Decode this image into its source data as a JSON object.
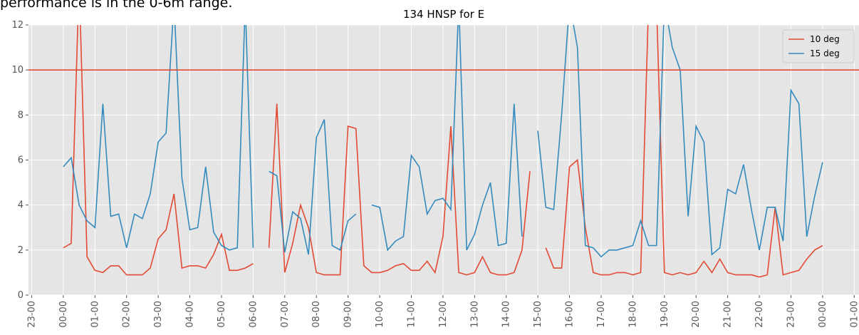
{
  "caption": "performance is in the 0-6m range.",
  "chart_data": {
    "type": "line",
    "title": "134 HNSP for E",
    "x": [
      0,
      0.25,
      0.5,
      0.75,
      1,
      1.25,
      1.5,
      1.75,
      2,
      2.25,
      2.5,
      2.75,
      3,
      3.25,
      3.5,
      3.75,
      4,
      4.25,
      4.5,
      4.75,
      5,
      5.25,
      5.5,
      5.75,
      6,
      6.25,
      6.5,
      6.75,
      7,
      7.25,
      7.5,
      7.75,
      8,
      8.25,
      8.5,
      8.75,
      9,
      9.25,
      9.5,
      9.75,
      10,
      10.25,
      10.5,
      10.75,
      11,
      11.25,
      11.5,
      11.75,
      12,
      12.25,
      12.5,
      12.75,
      13,
      13.25,
      13.5,
      13.75,
      14,
      14.25,
      14.5,
      14.75,
      15,
      15.25,
      15.5,
      15.75,
      16,
      16.25,
      16.5,
      16.75,
      17,
      17.25,
      17.5,
      17.75,
      18,
      18.25,
      18.5,
      18.75,
      19,
      19.25,
      19.5,
      19.75,
      20,
      20.25,
      20.5,
      20.75,
      21,
      21.25,
      21.5,
      21.75,
      22,
      22.25,
      22.5,
      22.75,
      23,
      23.25,
      23.5,
      23.75,
      24
    ],
    "series": [
      {
        "name": "10 deg",
        "color": "#E24A33",
        "values": [
          2.1,
          2.3,
          14,
          1.7,
          1.1,
          1.0,
          1.3,
          1.3,
          0.9,
          0.9,
          0.9,
          1.2,
          2.5,
          2.9,
          4.5,
          1.2,
          1.3,
          1.3,
          1.2,
          1.8,
          2.7,
          1.1,
          1.1,
          1.2,
          1.4,
          null,
          2.1,
          8.5,
          1.0,
          2.3,
          4.0,
          3.0,
          1.0,
          0.9,
          0.9,
          0.9,
          7.5,
          7.4,
          1.3,
          1.0,
          1.0,
          1.1,
          1.3,
          1.4,
          1.1,
          1.1,
          1.5,
          1.0,
          2.6,
          7.5,
          1.0,
          0.9,
          1.0,
          1.7,
          1.0,
          0.9,
          0.9,
          1.0,
          2.0,
          5.5,
          null,
          2.1,
          1.2,
          1.2,
          5.7,
          6.0,
          3.0,
          1.0,
          0.9,
          0.9,
          1.0,
          1.0,
          0.9,
          1.0,
          13,
          13,
          1.0,
          0.9,
          1.0,
          0.9,
          1.0,
          1.5,
          1.0,
          1.6,
          1.0,
          0.9,
          0.9,
          0.9,
          0.8,
          0.9,
          3.9,
          0.9,
          1.0,
          1.1,
          1.6,
          2.0,
          2.2
        ]
      },
      {
        "name": "15 deg",
        "color": "#348ABD",
        "values": [
          5.7,
          6.1,
          4.0,
          3.3,
          3.0,
          8.5,
          3.5,
          3.6,
          2.1,
          3.6,
          3.4,
          4.5,
          6.8,
          7.2,
          13,
          5.2,
          2.9,
          3.0,
          5.7,
          2.8,
          2.2,
          2.0,
          2.1,
          13,
          2.1,
          null,
          5.5,
          5.3,
          1.9,
          3.7,
          3.4,
          1.8,
          7.0,
          7.8,
          2.2,
          2.0,
          3.3,
          3.6,
          null,
          4.0,
          3.9,
          2.0,
          2.4,
          2.6,
          6.2,
          5.7,
          3.6,
          4.2,
          4.3,
          3.8,
          13,
          2.0,
          2.7,
          4.0,
          5.0,
          2.2,
          2.3,
          8.5,
          2.6,
          null,
          7.3,
          3.9,
          3.8,
          8.0,
          13,
          11,
          2.2,
          2.1,
          1.7,
          2.0,
          2.0,
          2.1,
          2.2,
          3.3,
          2.2,
          2.2,
          13,
          11,
          10,
          3.5,
          7.5,
          6.8,
          1.8,
          2.1,
          4.7,
          4.5,
          5.8,
          3.8,
          2.0,
          3.9,
          3.9,
          2.4,
          9.1,
          8.5,
          2.6,
          4.4,
          5.9
        ]
      }
    ],
    "hline": {
      "value": 10,
      "color": "#E24A33"
    },
    "xlim": [
      -1.1,
      25.15
    ],
    "xticks": [
      {
        "value": -1,
        "label": "23-00"
      },
      {
        "value": 0,
        "label": "00-00"
      },
      {
        "value": 1,
        "label": "01-00"
      },
      {
        "value": 2,
        "label": "02-00"
      },
      {
        "value": 3,
        "label": "03-00"
      },
      {
        "value": 4,
        "label": "04-00"
      },
      {
        "value": 5,
        "label": "05-00"
      },
      {
        "value": 6,
        "label": "06-00"
      },
      {
        "value": 7,
        "label": "07-00"
      },
      {
        "value": 8,
        "label": "08-00"
      },
      {
        "value": 9,
        "label": "09-00"
      },
      {
        "value": 10,
        "label": "10-00"
      },
      {
        "value": 11,
        "label": "11-00"
      },
      {
        "value": 12,
        "label": "12-00"
      },
      {
        "value": 13,
        "label": "13-00"
      },
      {
        "value": 14,
        "label": "14-00"
      },
      {
        "value": 15,
        "label": "15-00"
      },
      {
        "value": 16,
        "label": "16-00"
      },
      {
        "value": 17,
        "label": "17-00"
      },
      {
        "value": 18,
        "label": "18-00"
      },
      {
        "value": 19,
        "label": "19-00"
      },
      {
        "value": 20,
        "label": "20-00"
      },
      {
        "value": 21,
        "label": "21-00"
      },
      {
        "value": 22,
        "label": "22-00"
      },
      {
        "value": 23,
        "label": "23-00"
      },
      {
        "value": 24,
        "label": "00-00"
      },
      {
        "value": 25,
        "label": "01-00"
      }
    ],
    "ylim": [
      0,
      12
    ],
    "yticks": [
      0,
      2,
      4,
      6,
      8,
      10,
      12
    ],
    "grid": true,
    "legend": "upper right"
  }
}
